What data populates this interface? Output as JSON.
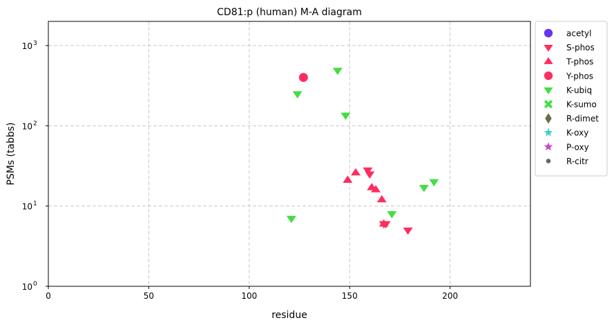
{
  "chart_data": {
    "type": "scatter",
    "title": "CD81:p (human) M-A diagram",
    "xlabel": "residue",
    "ylabel": "PSMs (tabbs)",
    "xlim": [
      0,
      240
    ],
    "ylim": [
      1,
      2000
    ],
    "yscale": "log",
    "grid": true,
    "legend_position": "outside-right",
    "x_ticks": [
      {
        "value": 0,
        "label": "0"
      },
      {
        "value": 50,
        "label": "50"
      },
      {
        "value": 100,
        "label": "100"
      },
      {
        "value": 150,
        "label": "150"
      },
      {
        "value": 200,
        "label": "200"
      }
    ],
    "y_ticks": [
      {
        "value": 1,
        "base": "10",
        "exp": "0"
      },
      {
        "value": 10,
        "base": "10",
        "exp": "1"
      },
      {
        "value": 100,
        "base": "10",
        "exp": "2"
      },
      {
        "value": 1000,
        "base": "10",
        "exp": "3"
      }
    ],
    "series": [
      {
        "name": "acetyl",
        "marker": "circle",
        "color": "#6633ee",
        "points": []
      },
      {
        "name": "S-phos",
        "marker": "triangle-down",
        "color": "#ff2d5f",
        "points": [
          {
            "x": 159,
            "y": 28
          },
          {
            "x": 160,
            "y": 25
          },
          {
            "x": 167,
            "y": 6
          },
          {
            "x": 168,
            "y": 6
          },
          {
            "x": 179,
            "y": 5
          }
        ]
      },
      {
        "name": "T-phos",
        "marker": "triangle-up",
        "color": "#ff2d5f",
        "points": [
          {
            "x": 149,
            "y": 21
          },
          {
            "x": 153,
            "y": 26
          },
          {
            "x": 161,
            "y": 17
          },
          {
            "x": 163,
            "y": 16
          },
          {
            "x": 166,
            "y": 12
          },
          {
            "x": 167,
            "y": 6
          }
        ]
      },
      {
        "name": "Y-phos",
        "marker": "circle",
        "color": "#ff2d5f",
        "points": [
          {
            "x": 127,
            "y": 400
          }
        ]
      },
      {
        "name": "K-ubiq",
        "marker": "triangle-down",
        "color": "#44dd44",
        "points": [
          {
            "x": 121,
            "y": 7
          },
          {
            "x": 124,
            "y": 250
          },
          {
            "x": 144,
            "y": 490
          },
          {
            "x": 148,
            "y": 135
          },
          {
            "x": 171,
            "y": 8
          },
          {
            "x": 187,
            "y": 17
          },
          {
            "x": 192,
            "y": 20
          }
        ]
      },
      {
        "name": "K-sumo",
        "marker": "x",
        "color": "#44dd44",
        "points": []
      },
      {
        "name": "R-dimet",
        "marker": "diamond",
        "color": "#6b6b47",
        "points": []
      },
      {
        "name": "K-oxy",
        "marker": "star",
        "color": "#44cccc",
        "points": []
      },
      {
        "name": "P-oxy",
        "marker": "star",
        "color": "#cc44cc",
        "points": []
      },
      {
        "name": "R-citr",
        "marker": "dot",
        "color": "#666666",
        "points": []
      }
    ]
  }
}
